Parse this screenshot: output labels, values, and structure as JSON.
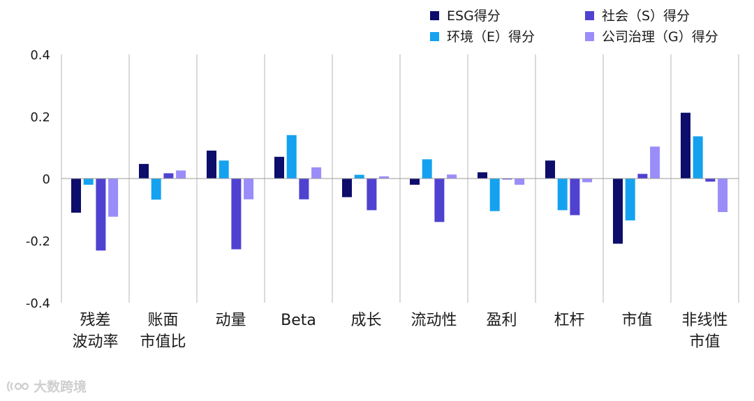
{
  "chart_data": {
    "type": "bar",
    "title": "",
    "xlabel": "",
    "ylabel": "",
    "ylim": [
      -0.4,
      0.4
    ],
    "yticks": [
      -0.4,
      -0.2,
      0,
      0.2,
      0.4
    ],
    "ytick_labels": [
      "-0.4",
      "-0.2",
      "0",
      "0.2",
      "0.4"
    ],
    "grid": false,
    "legend_position": "top-right",
    "categories": [
      [
        "残差",
        "波动率"
      ],
      [
        "账面",
        "市值比"
      ],
      [
        "动量"
      ],
      [
        "Beta"
      ],
      [
        "成长"
      ],
      [
        "流动性"
      ],
      [
        "盈利"
      ],
      [
        "杠杆"
      ],
      [
        "市值"
      ],
      [
        "非线性",
        "市值"
      ]
    ],
    "series": [
      {
        "name": "ESG得分",
        "color": "#0d0d6b",
        "values": [
          -0.11,
          0.047,
          0.09,
          0.07,
          -0.06,
          -0.02,
          0.02,
          0.058,
          -0.21,
          0.212
        ]
      },
      {
        "name": "环境（E）得分",
        "color": "#14a2f0",
        "values": [
          -0.02,
          -0.068,
          0.058,
          0.14,
          0.012,
          0.062,
          -0.105,
          -0.102,
          -0.135,
          0.136
        ]
      },
      {
        "name": "社会（S）得分",
        "color": "#4f42d0",
        "values": [
          -0.232,
          0.017,
          -0.228,
          -0.067,
          -0.102,
          -0.14,
          -0.003,
          -0.118,
          0.015,
          -0.01
        ]
      },
      {
        "name": "公司治理（G）得分",
        "color": "#9a8dfa",
        "values": [
          -0.123,
          0.026,
          -0.067,
          0.036,
          0.007,
          0.013,
          -0.02,
          -0.012,
          0.103,
          -0.108
        ]
      }
    ]
  },
  "watermark": {
    "text": "大数跨境"
  }
}
